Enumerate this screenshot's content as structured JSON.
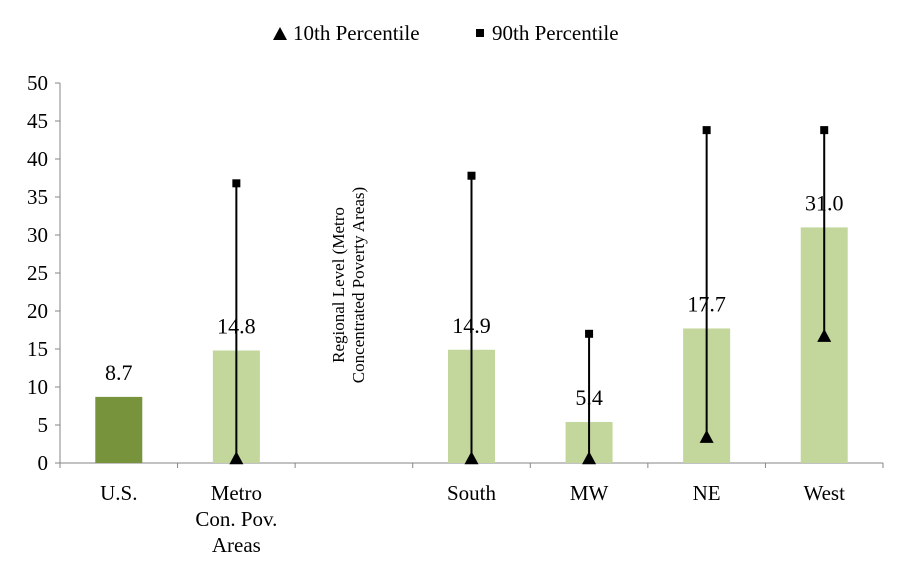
{
  "chart_data": {
    "type": "bar",
    "title": "",
    "xlabel": "",
    "ylabel": "",
    "ylim": [
      0,
      50
    ],
    "yticks": [
      0,
      5,
      10,
      15,
      20,
      25,
      30,
      35,
      40,
      45,
      50
    ],
    "grid": false,
    "legend_position": "top",
    "categories": [
      [
        "U.S."
      ],
      [
        "Metro",
        "Con. Pov.",
        "Areas"
      ],
      [],
      [
        "South"
      ],
      [
        "MW"
      ],
      [
        "NE"
      ],
      [
        "West"
      ]
    ],
    "annotation": [
      "Regional Level (Metro",
      "Concentrated Poverty Areas)"
    ],
    "bars": {
      "values": [
        8.7,
        14.8,
        null,
        14.9,
        5.4,
        17.7,
        31.0
      ],
      "labels": [
        "8.7",
        "14.8",
        "",
        "14.9",
        "5.4",
        "17.7",
        "31.0"
      ],
      "colors": [
        "#77933C",
        "#C3D69B",
        null,
        "#C3D69B",
        "#C3D69B",
        "#C3D69B",
        "#C3D69B"
      ]
    },
    "series": [
      {
        "name": "10th Percentile",
        "marker": "triangle",
        "values": [
          null,
          0.5,
          null,
          0.5,
          0.5,
          3.3,
          16.6
        ]
      },
      {
        "name": "90th Percentile",
        "marker": "square",
        "values": [
          null,
          36.8,
          null,
          37.8,
          17.0,
          43.8,
          43.8
        ]
      }
    ]
  }
}
